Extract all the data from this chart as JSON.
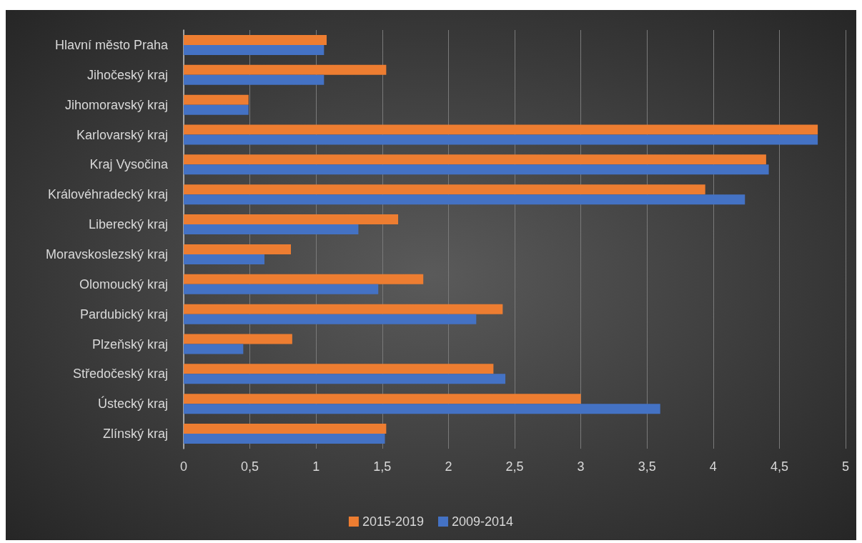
{
  "chart_data": {
    "type": "bar",
    "orientation": "horizontal",
    "categories": [
      "Hlavní město Praha",
      "Jihočeský kraj",
      "Jihomoravský kraj",
      "Karlovarský kraj",
      "Kraj Vysočina",
      "Královéhradecký kraj",
      "Liberecký kraj",
      "Moravskoslezský kraj",
      "Olomoucký kraj",
      "Pardubický kraj",
      "Plzeňský kraj",
      "Středočeský kraj",
      "Ústecký kraj",
      "Zlínský kraj"
    ],
    "series": [
      {
        "name": "2015-2019",
        "color": "#ed7d31",
        "values": [
          1.08,
          1.53,
          0.49,
          4.79,
          4.4,
          3.94,
          1.62,
          0.81,
          1.81,
          2.41,
          0.82,
          2.34,
          3.0,
          1.53
        ]
      },
      {
        "name": "2009-2014",
        "color": "#4472c4",
        "values": [
          1.06,
          1.06,
          0.49,
          4.79,
          4.42,
          4.24,
          1.32,
          0.61,
          1.47,
          2.21,
          0.45,
          2.43,
          3.6,
          1.52
        ]
      }
    ],
    "xlim": [
      0,
      5
    ],
    "xticks": [
      0,
      {
        "value": 0.5,
        "label": "0,5"
      },
      1,
      {
        "value": 1.5,
        "label": "1,5"
      },
      2,
      {
        "value": 2.5,
        "label": "2,5"
      },
      3,
      {
        "value": 3.5,
        "label": "3,5"
      },
      4,
      {
        "value": 4.5,
        "label": "4,5"
      },
      5
    ],
    "grid": "x",
    "legend": "bottom"
  }
}
